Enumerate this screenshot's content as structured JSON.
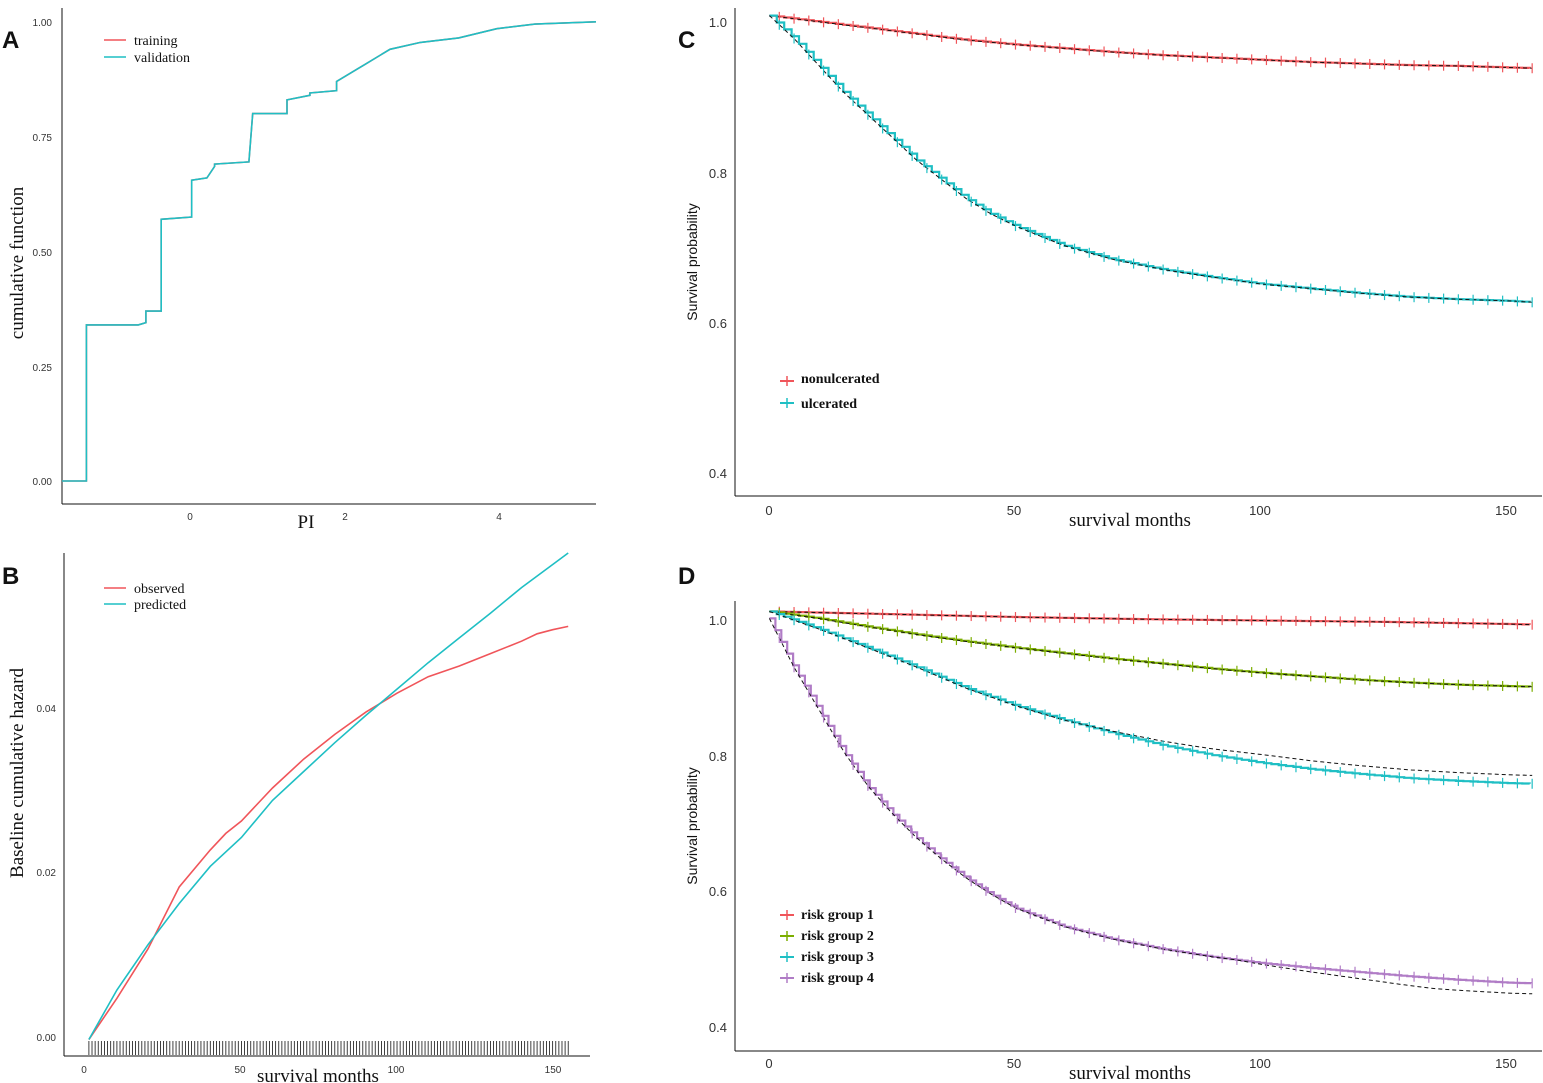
{
  "colors": {
    "red": "#F0555A",
    "teal": "#1FBFC4",
    "green": "#7CAE00",
    "purple": "#B07CC6",
    "black": "#111111"
  },
  "chart_data": [
    {
      "panel": "A",
      "type": "line",
      "step": true,
      "xlabel": "PI",
      "ylabel": "cumulative function",
      "xlim": [
        -1.7,
        5.3
      ],
      "ylim": [
        -0.05,
        1.03
      ],
      "xticks": [
        0,
        2,
        4
      ],
      "yticks": [
        0.0,
        0.25,
        0.5,
        0.75,
        1.0
      ],
      "ytick_labels": [
        "0.00",
        "0.25",
        "0.50",
        "0.75",
        "1.00"
      ],
      "legend": [
        "training",
        "validation"
      ],
      "series": [
        {
          "name": "training",
          "color": "red",
          "x": [
            -1.7,
            -1.38,
            -1.38,
            -0.7,
            -0.6,
            -0.6,
            -0.4,
            -0.4,
            0.0,
            0.0,
            0.2,
            0.3,
            0.3,
            0.75,
            0.75,
            0.8,
            0.8,
            1.25,
            1.25,
            1.55,
            1.55,
            1.9,
            1.9,
            2.2,
            2.25,
            2.6,
            3.0,
            3.5,
            4.0,
            4.5,
            5.3
          ],
          "y": [
            0.0,
            0.0,
            0.34,
            0.34,
            0.345,
            0.37,
            0.37,
            0.57,
            0.575,
            0.655,
            0.66,
            0.685,
            0.69,
            0.695,
            0.695,
            0.8,
            0.8,
            0.8,
            0.83,
            0.84,
            0.845,
            0.85,
            0.87,
            0.9,
            0.905,
            0.94,
            0.955,
            0.965,
            0.985,
            0.995,
            1.0
          ]
        },
        {
          "name": "validation",
          "color": "teal",
          "x": [
            -1.7,
            -1.38,
            -1.38,
            -0.7,
            -0.6,
            -0.6,
            -0.4,
            -0.4,
            0.0,
            0.0,
            0.2,
            0.3,
            0.3,
            0.75,
            0.75,
            0.8,
            0.8,
            1.25,
            1.25,
            1.55,
            1.55,
            1.9,
            1.9,
            2.2,
            2.25,
            2.6,
            3.0,
            3.5,
            4.0,
            4.5,
            5.3
          ],
          "y": [
            0.0,
            0.0,
            0.34,
            0.34,
            0.345,
            0.37,
            0.37,
            0.57,
            0.575,
            0.655,
            0.66,
            0.685,
            0.69,
            0.695,
            0.695,
            0.8,
            0.8,
            0.8,
            0.83,
            0.84,
            0.845,
            0.85,
            0.87,
            0.9,
            0.905,
            0.94,
            0.955,
            0.965,
            0.985,
            0.995,
            1.0
          ]
        }
      ]
    },
    {
      "panel": "B",
      "type": "line",
      "xlabel": "survival months",
      "ylabel": "Baseline cumulative hazard",
      "xlim": [
        -7,
        162
      ],
      "ylim": [
        -0.0015,
        0.0595
      ],
      "xticks": [
        0,
        50,
        100,
        150
      ],
      "yticks": [
        0.0,
        0.02,
        0.04
      ],
      "ytick_labels": [
        "0.00",
        "0.02",
        "0.04"
      ],
      "legend": [
        "observed",
        "predicted"
      ],
      "rug_event_times": [
        1,
        2,
        3,
        4,
        5,
        6,
        7,
        8,
        9,
        10,
        11,
        12,
        13,
        14,
        15,
        16,
        17,
        18,
        19,
        20,
        21,
        22,
        23,
        24,
        25,
        26,
        27,
        28,
        29,
        30,
        31,
        32,
        33,
        34,
        35,
        36,
        37,
        38,
        39,
        40,
        41,
        42,
        43,
        44,
        45,
        46,
        47,
        48,
        49,
        50,
        51,
        52,
        53,
        54,
        55,
        56,
        57,
        58,
        59,
        60,
        61,
        62,
        63,
        64,
        65,
        66,
        67,
        68,
        69,
        70,
        71,
        72,
        73,
        74,
        75,
        76,
        77,
        78,
        79,
        80,
        81,
        82,
        83,
        84,
        85,
        86,
        87,
        88,
        89,
        90,
        91,
        92,
        93,
        94,
        95,
        96,
        97,
        98,
        99,
        100,
        101,
        102,
        103,
        104,
        105,
        106,
        107,
        108,
        109,
        110,
        111,
        112,
        113,
        114,
        115,
        116,
        117,
        118,
        119,
        120,
        121,
        122,
        123,
        124,
        125,
        126,
        127,
        128,
        129,
        130,
        131,
        132,
        133,
        134,
        135,
        136,
        137,
        138,
        139,
        140,
        141,
        142,
        143,
        144,
        145,
        146,
        147,
        148,
        149,
        150,
        151,
        152,
        153,
        154,
        155
      ],
      "series": [
        {
          "name": "observed",
          "color": "red",
          "x": [
            1,
            10,
            20,
            30,
            40,
            45,
            50,
            60,
            70,
            80,
            90,
            100,
            110,
            120,
            130,
            140,
            145,
            150,
            155
          ],
          "y": [
            0.0005,
            0.0055,
            0.0115,
            0.019,
            0.0235,
            0.0255,
            0.027,
            0.031,
            0.0345,
            0.0375,
            0.0402,
            0.0425,
            0.0445,
            0.0458,
            0.0473,
            0.0488,
            0.0497,
            0.0502,
            0.0506
          ]
        },
        {
          "name": "predicted",
          "color": "teal",
          "x": [
            1,
            10,
            20,
            30,
            40,
            50,
            60,
            70,
            80,
            90,
            100,
            110,
            120,
            130,
            140,
            150,
            155
          ],
          "y": [
            0.0005,
            0.0065,
            0.012,
            0.017,
            0.0215,
            0.025,
            0.0295,
            0.033,
            0.0365,
            0.0398,
            0.043,
            0.0462,
            0.0492,
            0.0522,
            0.0553,
            0.0581,
            0.0595
          ]
        }
      ]
    },
    {
      "panel": "C",
      "type": "line",
      "step": true,
      "xlabel": "survival months",
      "ylabel": "Survival probability",
      "xlim": [
        -7,
        157
      ],
      "ylim": [
        0.37,
        1.01
      ],
      "xticks": [
        0,
        50,
        100,
        150
      ],
      "yticks": [
        0.4,
        0.6,
        0.8,
        1.0
      ],
      "ytick_labels": [
        "0.4",
        "0.6",
        "0.8",
        "1.0"
      ],
      "legend": [
        "nonulcerated",
        "ulcerated"
      ],
      "series": [
        {
          "name": "nonulcerated",
          "color": "red",
          "x": [
            0,
            5,
            10,
            20,
            30,
            40,
            50,
            60,
            70,
            80,
            90,
            100,
            110,
            120,
            130,
            140,
            150,
            155
          ],
          "y": [
            1.0,
            0.996,
            0.992,
            0.984,
            0.976,
            0.968,
            0.962,
            0.957,
            0.952,
            0.948,
            0.945,
            0.942,
            0.939,
            0.937,
            0.935,
            0.934,
            0.932,
            0.931
          ]
        },
        {
          "name": "ulcerated",
          "color": "teal",
          "x": [
            0,
            5,
            10,
            15,
            20,
            25,
            30,
            35,
            40,
            45,
            50,
            60,
            70,
            80,
            90,
            100,
            110,
            120,
            130,
            140,
            150,
            155
          ],
          "y": [
            1.0,
            0.97,
            0.935,
            0.9,
            0.87,
            0.84,
            0.81,
            0.785,
            0.76,
            0.74,
            0.724,
            0.698,
            0.68,
            0.667,
            0.657,
            0.648,
            0.642,
            0.636,
            0.631,
            0.628,
            0.626,
            0.624
          ]
        }
      ]
    },
    {
      "panel": "D",
      "type": "line",
      "step": true,
      "xlabel": "survival months",
      "ylabel": "Survival probability",
      "xlim": [
        -7,
        157
      ],
      "ylim": [
        0.37,
        1.015
      ],
      "xticks": [
        0,
        50,
        100,
        150
      ],
      "yticks": [
        0.4,
        0.6,
        0.8,
        1.0
      ],
      "ytick_labels": [
        "0.4",
        "0.6",
        "0.8",
        "1.0"
      ],
      "legend": [
        "risk group 1",
        "risk group 2",
        "risk group 3",
        "risk group 4"
      ],
      "series": [
        {
          "name": "risk group 1",
          "color": "red",
          "x": [
            0,
            25,
            50,
            75,
            100,
            125,
            150,
            155
          ],
          "y": [
            1.0,
            0.996,
            0.992,
            0.989,
            0.987,
            0.985,
            0.982,
            0.981
          ]
        },
        {
          "name": "risk group 2",
          "color": "green",
          "x": [
            0,
            10,
            20,
            30,
            40,
            50,
            60,
            70,
            80,
            90,
            100,
            110,
            120,
            130,
            140,
            150,
            155
          ],
          "y": [
            1.0,
            0.99,
            0.978,
            0.967,
            0.957,
            0.948,
            0.94,
            0.932,
            0.925,
            0.918,
            0.912,
            0.907,
            0.902,
            0.898,
            0.895,
            0.893,
            0.892
          ]
        },
        {
          "name": "risk group 3",
          "color": "teal",
          "x": [
            0,
            10,
            20,
            30,
            40,
            50,
            60,
            70,
            80,
            90,
            100,
            110,
            120,
            130,
            140,
            150,
            155
          ],
          "y": [
            1.0,
            0.975,
            0.948,
            0.92,
            0.89,
            0.865,
            0.844,
            0.825,
            0.808,
            0.794,
            0.783,
            0.774,
            0.767,
            0.761,
            0.757,
            0.754,
            0.753
          ]
        },
        {
          "name": "risk group 4",
          "color": "purple",
          "x": [
            0,
            5,
            10,
            15,
            20,
            25,
            30,
            35,
            40,
            45,
            50,
            60,
            70,
            80,
            90,
            100,
            110,
            120,
            130,
            140,
            150,
            155
          ],
          "y": [
            0.99,
            0.92,
            0.86,
            0.8,
            0.75,
            0.71,
            0.675,
            0.645,
            0.618,
            0.595,
            0.575,
            0.548,
            0.53,
            0.516,
            0.505,
            0.496,
            0.489,
            0.483,
            0.477,
            0.472,
            0.468,
            0.467
          ]
        }
      ]
    }
  ],
  "labels": {
    "A": {
      "panel": "A",
      "xlabel": "PI",
      "ylabel": "cumulative function",
      "legend1": "training",
      "legend2": "validation",
      "xtick0": "0",
      "xtick1": "2",
      "xtick2": "4",
      "ytick0": "0.00",
      "ytick1": "0.25",
      "ytick2": "0.50",
      "ytick3": "0.75",
      "ytick4": "1.00"
    },
    "B": {
      "panel": "B",
      "xlabel": "survival months",
      "ylabel": "Baseline cumulative hazard",
      "legend1": "observed",
      "legend2": "predicted",
      "xtick0": "0",
      "xtick1": "50",
      "xtick2": "100",
      "xtick3": "150",
      "ytick0": "0.00",
      "ytick1": "0.02",
      "ytick2": "0.04"
    },
    "C": {
      "panel": "C",
      "xlabel": "survival months",
      "ylabel": "Survival probability",
      "legend1": "nonulcerated",
      "legend2": "ulcerated",
      "xtick0": "0",
      "xtick1": "50",
      "xtick2": "100",
      "xtick3": "150",
      "ytick0": "0.4",
      "ytick1": "0.6",
      "ytick2": "0.8",
      "ytick3": "1.0"
    },
    "D": {
      "panel": "D",
      "xlabel": "survival months",
      "ylabel": "Survival probability",
      "legend1": "risk group 1",
      "legend2": "risk group 2",
      "legend3": "risk group 3",
      "legend4": "risk group 4",
      "xtick0": "0",
      "xtick1": "50",
      "xtick2": "100",
      "xtick3": "150",
      "ytick0": "0.4",
      "ytick1": "0.6",
      "ytick2": "0.8",
      "ytick3": "1.0"
    }
  }
}
